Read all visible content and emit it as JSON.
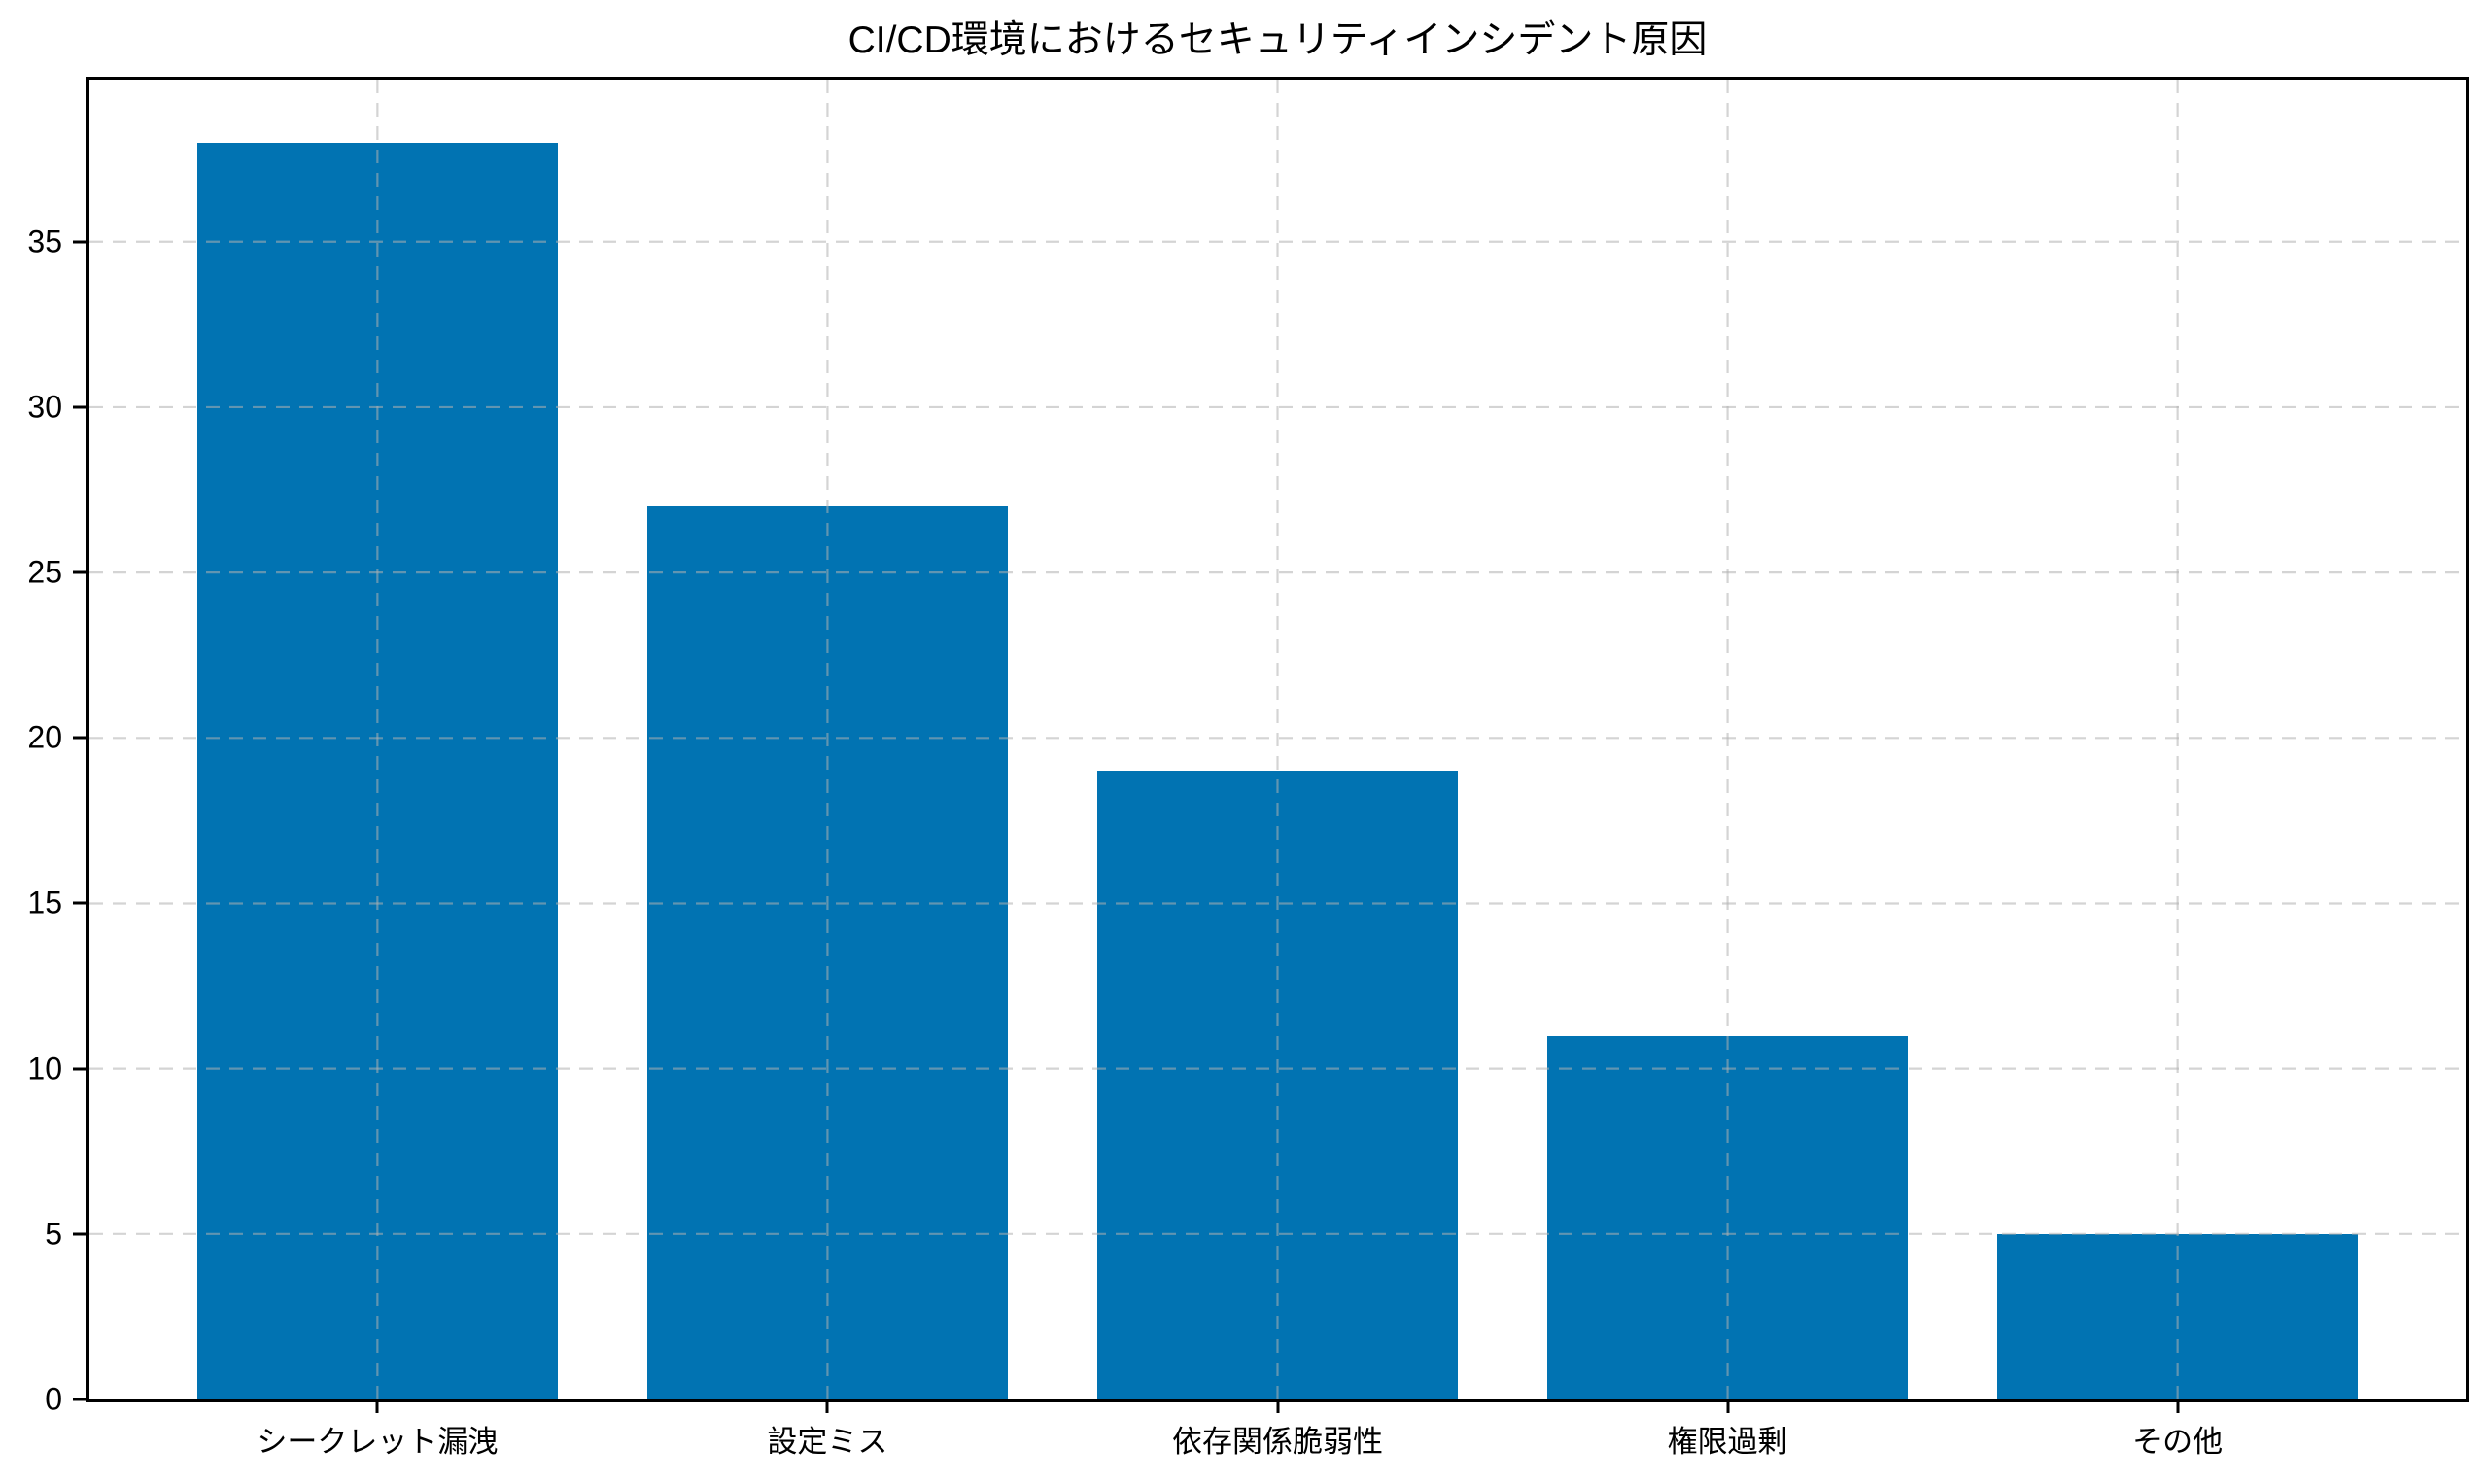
{
  "chart_data": {
    "type": "bar",
    "title": "CI/CD環境におけるセキュリティインシデント原因",
    "categories": [
      "シークレット漏洩",
      "設定ミス",
      "依存関係脆弱性",
      "権限過剰",
      "その他"
    ],
    "values": [
      38,
      27,
      19,
      11,
      5
    ],
    "xlabel": "",
    "ylabel": "",
    "yticks": [
      0,
      5,
      10,
      15,
      20,
      25,
      30,
      35
    ],
    "ytick_labels": [
      "0",
      "5",
      "10",
      "15",
      "20",
      "25",
      "30",
      "35"
    ],
    "ylim": [
      0,
      39.9
    ],
    "xlim": [
      -0.64,
      4.64
    ],
    "bar_width": 0.8,
    "legend": "none",
    "grid": "both",
    "grid_style": "dashed",
    "grid_above_bars": true,
    "colors": {
      "bar": "#0173b2",
      "grid": "#b0b0b0",
      "grid_alpha": 0.55,
      "axis": "#000000",
      "text": "#000000",
      "background": "#ffffff"
    }
  }
}
